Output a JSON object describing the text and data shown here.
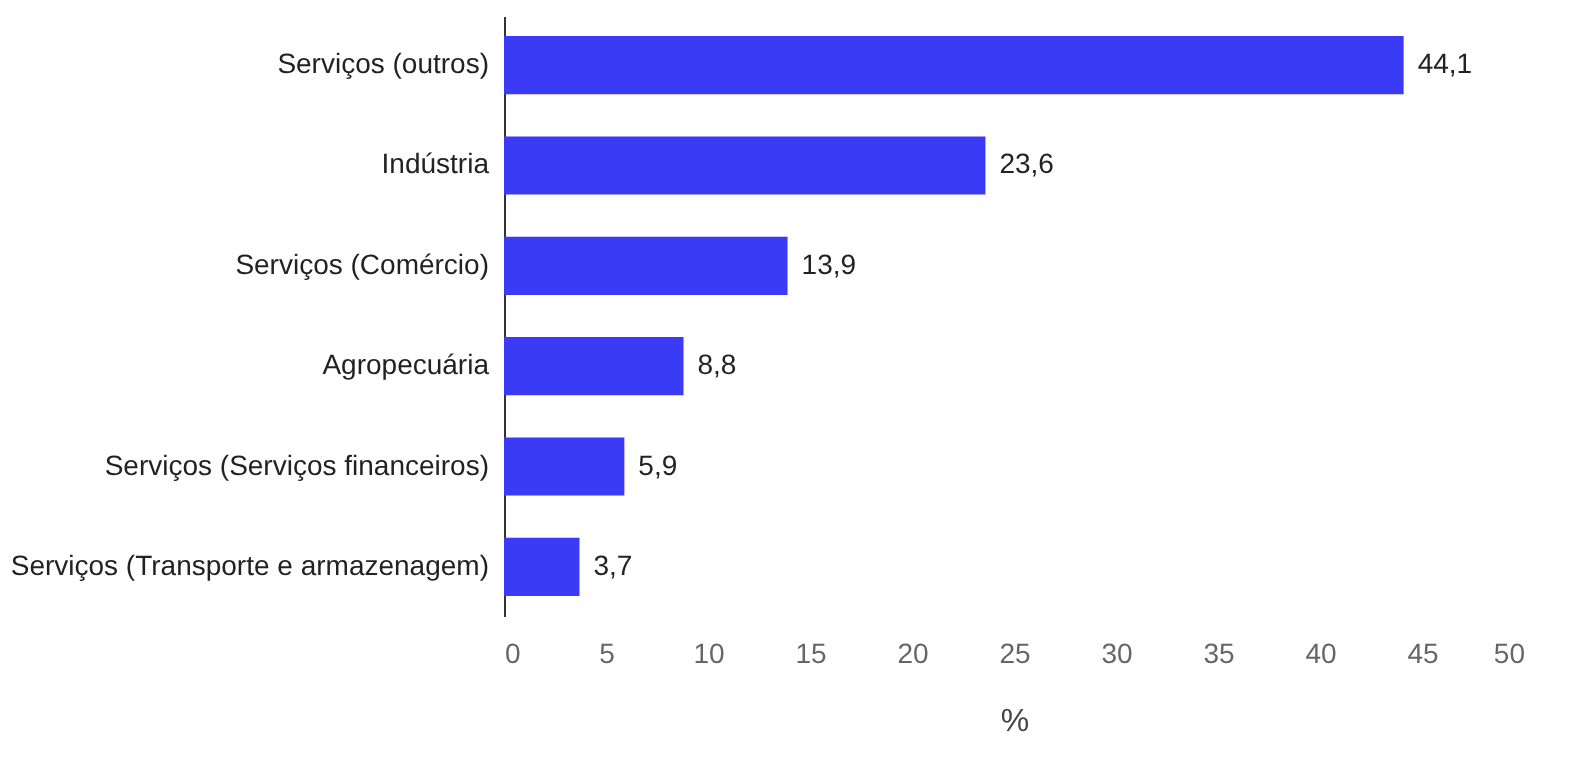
{
  "chart_data": {
    "type": "bar",
    "orientation": "horizontal",
    "xlabel": "%",
    "categories": [
      "Serviços (outros)",
      "Indústria",
      "Serviços (Comércio)",
      "Agropecuária",
      "Serviços (Serviços financeiros)",
      "Serviços (Transporte e armazenagem)"
    ],
    "values": [
      44.1,
      23.6,
      13.9,
      8.8,
      5.9,
      3.7
    ],
    "color": "#3b3bf6",
    "xlim": [
      0,
      50
    ],
    "xticks": [
      0,
      5,
      10,
      15,
      20,
      25,
      30,
      35,
      40,
      45,
      50
    ],
    "value_labels": [
      "44,1",
      "23,6",
      "13,9",
      "8,8",
      "5,9",
      "3,7"
    ],
    "grid": false
  }
}
